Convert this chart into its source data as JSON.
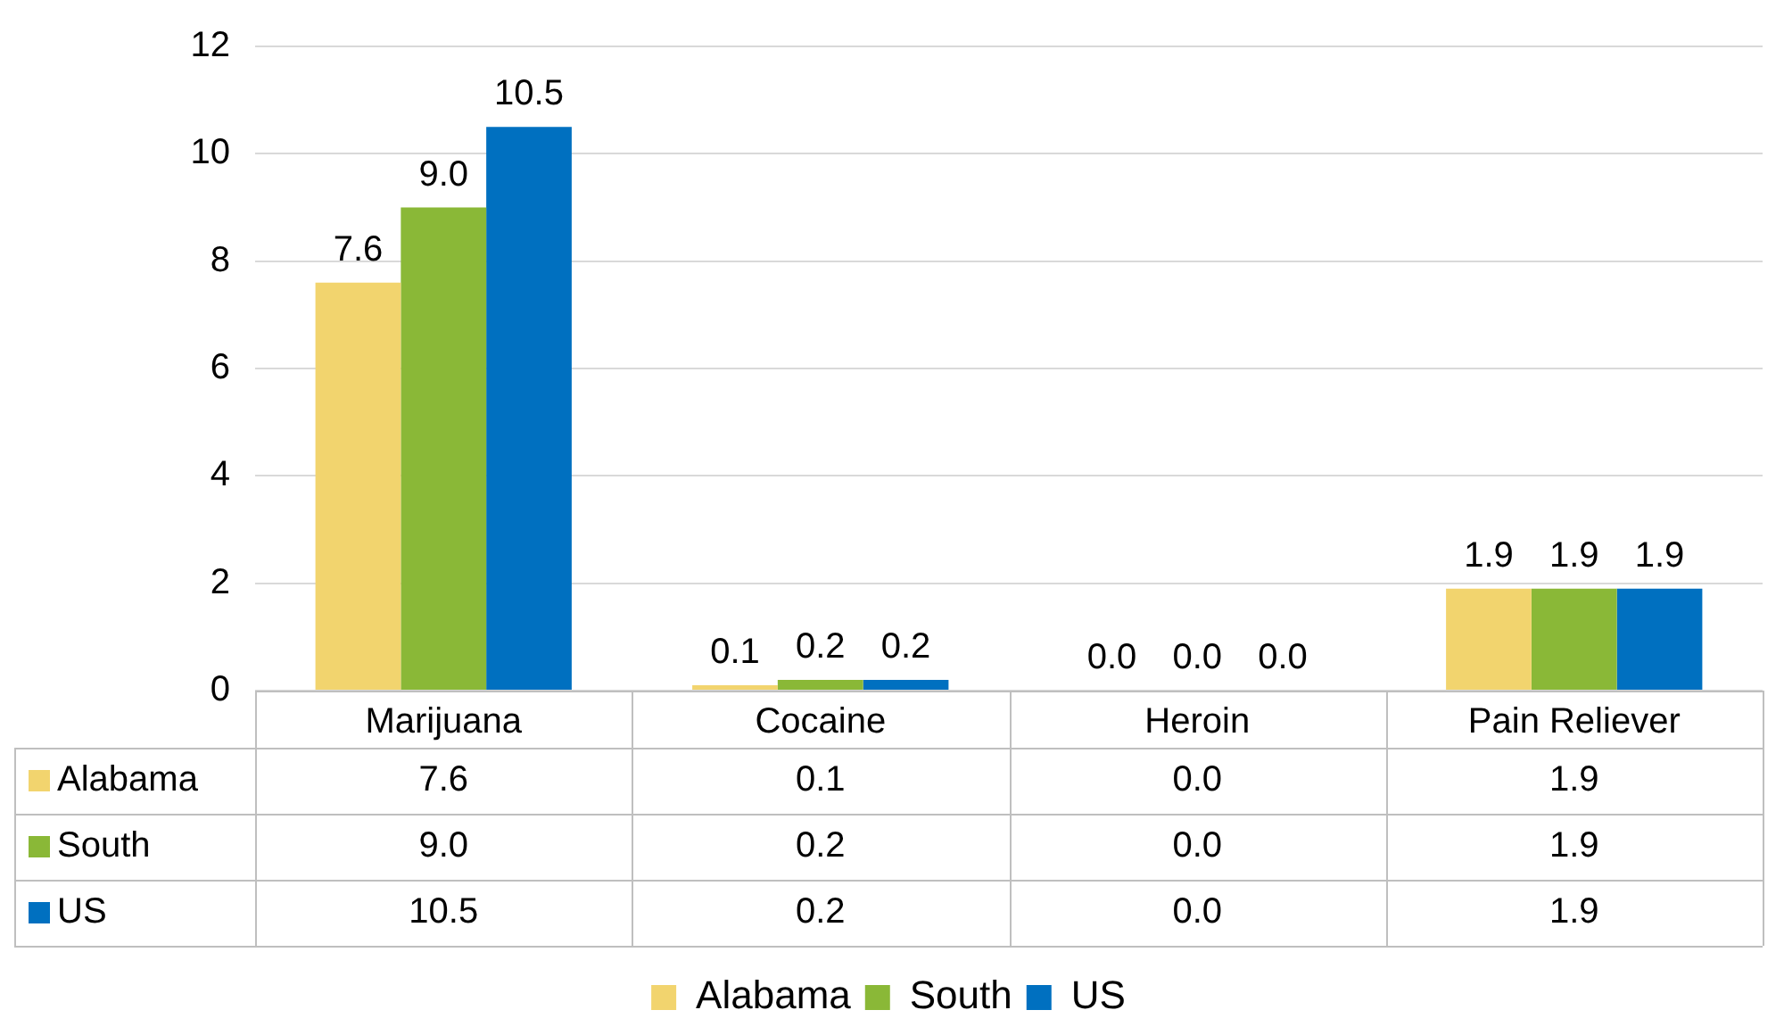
{
  "chart_data": {
    "type": "bar",
    "categories": [
      "Marijuana",
      "Cocaine",
      "Heroin",
      "Pain Reliever"
    ],
    "series": [
      {
        "name": "Alabama",
        "color": "#f2d46e",
        "values": [
          7.6,
          0.1,
          0.0,
          1.9
        ],
        "value_labels": [
          "7.6",
          "0.1",
          "0.0",
          "1.9"
        ]
      },
      {
        "name": "South",
        "color": "#8ab837",
        "values": [
          9.0,
          0.2,
          0.0,
          1.9
        ],
        "value_labels": [
          "9.0",
          "0.2",
          "0.0",
          "1.9"
        ]
      },
      {
        "name": "US",
        "color": "#0070c0",
        "values": [
          10.5,
          0.2,
          0.0,
          1.9
        ],
        "value_labels": [
          "10.5",
          "0.2",
          "0.0",
          "1.9"
        ]
      }
    ],
    "ylim": [
      0,
      12
    ],
    "yticks": [
      0,
      2,
      4,
      6,
      8,
      10,
      12
    ],
    "grid": "y",
    "legend": "bottom"
  }
}
